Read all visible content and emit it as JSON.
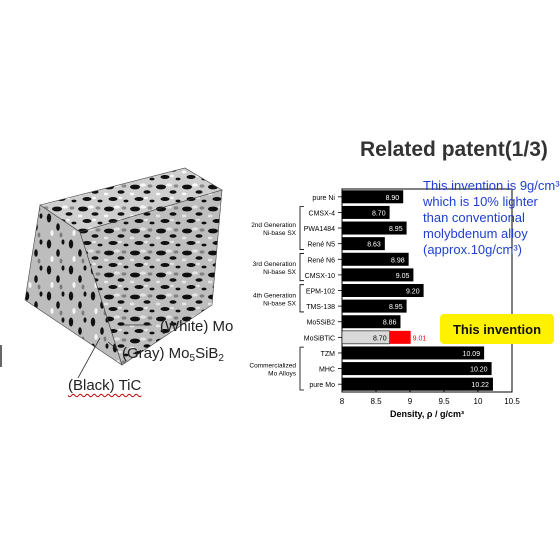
{
  "slide": {
    "title": "Related patent(1/3)"
  },
  "figure": {
    "labels": {
      "white": "(White) Mo",
      "gray": "(Gray) Mo",
      "gray_sub1": "5",
      "gray_mid": "SiB",
      "gray_sub2": "2",
      "black": "(Black) TiC"
    }
  },
  "callout": {
    "text": "This invention is 9g/cm³ which is 10% lighter than conventional molybdenum alloy (approx.10g/cm³)"
  },
  "badge": {
    "text": "This invention"
  },
  "chart_data": {
    "type": "bar",
    "orientation": "horizontal",
    "xlabel": "Density, ρ / g/cm³",
    "xlim": [
      8,
      10.5
    ],
    "xticks": [
      "8",
      "8.5",
      "9",
      "9.5",
      "10",
      "10.5"
    ],
    "categories": [
      "pure Ni",
      "CMSX-4",
      "PWA1484",
      "René N5",
      "René N6",
      "CMSX-10",
      "EPM-102",
      "TMS-138",
      "Mo5SiB2",
      "MoSiBTiC",
      "TZM",
      "MHC",
      "pure Mo"
    ],
    "values": [
      8.9,
      8.7,
      8.95,
      8.63,
      8.98,
      9.05,
      9.2,
      8.95,
      8.86,
      8.7,
      10.09,
      10.2,
      10.22
    ],
    "value_labels": [
      "8.90",
      "8.70",
      "8.95",
      "8.63",
      "8.98",
      "9.05",
      "9.20",
      "8.95",
      "8.86",
      "8.70",
      "10.09",
      "10.20",
      "10.22"
    ],
    "highlight": {
      "category": "MoSiBTiC",
      "base": 8.7,
      "value": 9.01,
      "label": "9.01",
      "base_color": "#d9d9d9",
      "color": "#ff0000"
    },
    "bar_color": "#000000",
    "groups": [
      {
        "name_line1": "2nd Generation",
        "name_line2": "Ni-base SX",
        "from": 1,
        "to": 3
      },
      {
        "name_line1": "3rd Generation",
        "name_line2": "Ni-base SX",
        "from": 4,
        "to": 5
      },
      {
        "name_line1": "4th Generation",
        "name_line2": "Ni-base SX",
        "from": 6,
        "to": 7
      },
      {
        "name_line1": "Commercialized",
        "name_line2": "Mo Alloys",
        "from": 10,
        "to": 12
      }
    ],
    "grid": false
  }
}
